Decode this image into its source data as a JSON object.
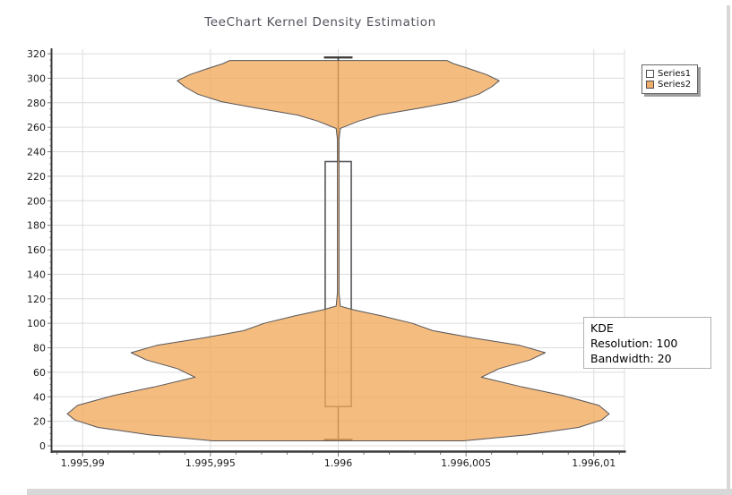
{
  "window_title": "TeeChart Kernel Density Estimation",
  "chart_data": {
    "type": "violin",
    "title": "TeeChart Kernel Density Estimation",
    "title_color": "#51515c",
    "annotation": {
      "lines": [
        "KDE",
        "Resolution: 100",
        "Bandwidth: 20"
      ]
    },
    "legend": {
      "position": "outside-top-right",
      "entries": [
        {
          "label": "Series1",
          "color": "#FFFFFF"
        },
        {
          "label": "Series2",
          "color": "#F0AE6C"
        }
      ]
    },
    "x_axis": {
      "min": 1.9959888,
      "max": 1.9960112,
      "ticks": [
        {
          "value": 1.99599,
          "label": "1.995,99"
        },
        {
          "value": 1.995995,
          "label": "1.995,995"
        },
        {
          "value": 1.996,
          "label": "1.996"
        },
        {
          "value": 1.996005,
          "label": "1.996,005"
        },
        {
          "value": 1.99601,
          "label": "1.996,01"
        }
      ],
      "minor_ticks_per_interval": 4
    },
    "y_axis": {
      "min": -5.1,
      "max": 323.7,
      "tick_min": 0,
      "tick_max": 320,
      "tick_step": 20,
      "minor_tick_step": 5
    },
    "grid": {
      "show": true,
      "color": "#dcdcdc"
    },
    "series": [
      {
        "name": "Series1",
        "type": "boxplot",
        "x": 1.996,
        "whisker_low": 5,
        "q1": 32,
        "median": 60,
        "q3": 232,
        "whisker_high": 317,
        "box_halfwidth": 5.1e-07,
        "cap_halfwidth": 5.6e-07,
        "stroke": "#57575b",
        "whisker_stroke": "#3e3e3e",
        "median_stroke": "#9b9b9b",
        "fill": "none"
      },
      {
        "name": "Series2",
        "type": "kde_violin",
        "x": 1.996,
        "resolution": 100,
        "bandwidth": 20,
        "fill": "#F2A95B",
        "fill_opacity": 0.78,
        "stroke": "#55555a",
        "profile": [
          [
            4,
            4.9e-06
          ],
          [
            9,
            7.4e-06
          ],
          [
            15,
            9.4e-06
          ],
          [
            21,
            1.03e-05
          ],
          [
            26,
            1.06e-05
          ],
          [
            33,
            1.02e-05
          ],
          [
            41,
            8.8e-06
          ],
          [
            48,
            7.2e-06
          ],
          [
            56,
            5.6e-06
          ],
          [
            63,
            6.3e-06
          ],
          [
            70,
            7.5e-06
          ],
          [
            76,
            8.1e-06
          ],
          [
            82,
            7.1e-06
          ],
          [
            88,
            5.3e-06
          ],
          [
            94,
            3.7e-06
          ],
          [
            100,
            2.9e-06
          ],
          [
            106,
            1.7e-06
          ],
          [
            111,
            6e-07
          ],
          [
            114,
            8e-08
          ],
          [
            125,
            3e-08
          ],
          [
            250,
            3e-08
          ],
          [
            259,
            8e-08
          ],
          [
            265,
            8e-07
          ],
          [
            270,
            1.6e-06
          ],
          [
            276,
            3.3e-06
          ],
          [
            281,
            4.6e-06
          ],
          [
            287,
            5.5e-06
          ],
          [
            293,
            6e-06
          ],
          [
            298,
            6.3e-06
          ],
          [
            303,
            5.8e-06
          ],
          [
            308,
            5.1e-06
          ],
          [
            312,
            4.5e-06
          ],
          [
            314.5,
            4.25e-06
          ]
        ]
      }
    ],
    "axis_line_color": "#3c3c3c",
    "tick_color": "#777777",
    "label_color": "#1b1b1b"
  }
}
